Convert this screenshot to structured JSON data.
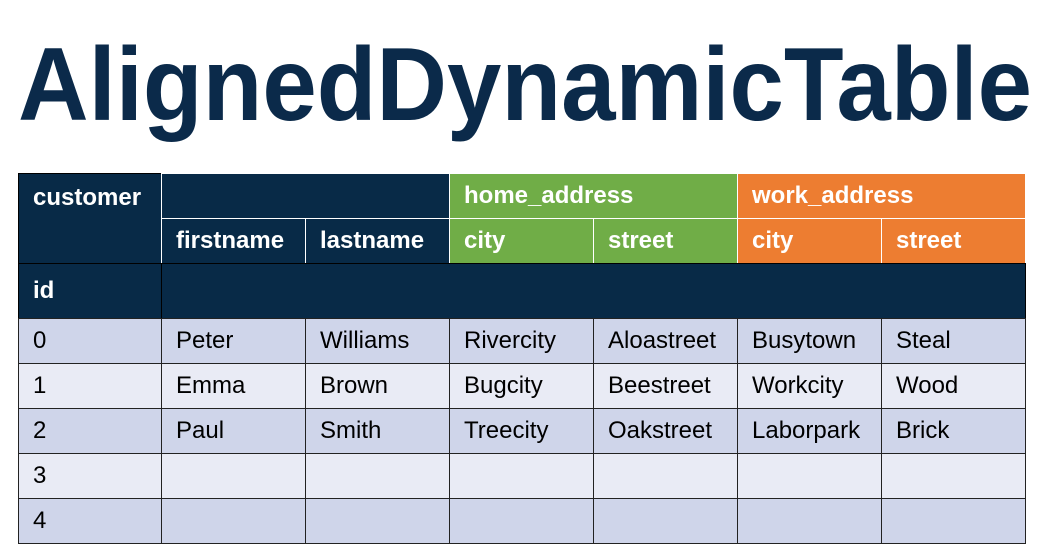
{
  "header": {
    "title": "AlignedDynamicTable"
  },
  "table": {
    "index_label": "customer",
    "index_name": "id",
    "groups": [
      "home_address",
      "work_address"
    ],
    "columns": [
      "firstname",
      "lastname",
      "city",
      "street",
      "city",
      "street"
    ],
    "rows": [
      {
        "id": "0",
        "cells": [
          "Peter",
          "Williams",
          "Rivercity",
          "Aloastreet",
          "Busytown",
          "Steal"
        ]
      },
      {
        "id": "1",
        "cells": [
          "Emma",
          "Brown",
          "Bugcity",
          "Beestreet",
          "Workcity",
          "Wood"
        ]
      },
      {
        "id": "2",
        "cells": [
          "Paul",
          "Smith",
          "Treecity",
          "Oakstreet",
          "Laborpark",
          "Brick"
        ]
      },
      {
        "id": "3"
      },
      {
        "id": "4"
      }
    ]
  }
}
